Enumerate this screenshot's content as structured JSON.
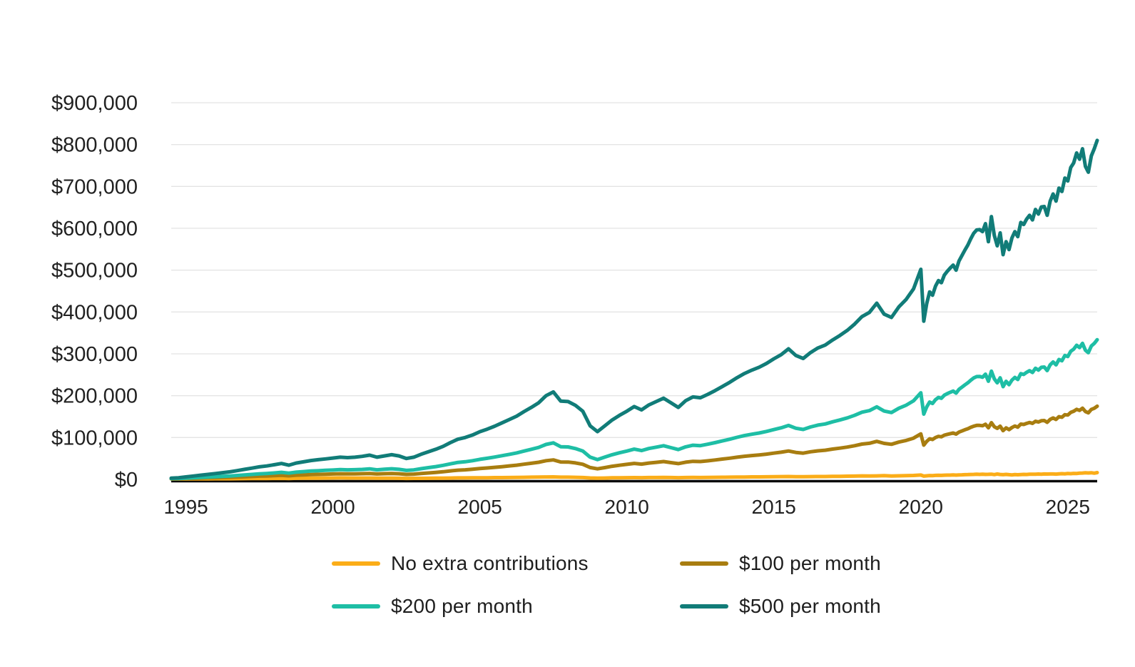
{
  "page": {
    "background": "#ffffff",
    "text_color": "#212121"
  },
  "chart_data": {
    "type": "line",
    "title": "",
    "grid": true,
    "grid_color": "#e4e4e4",
    "axis_color": "#0b0b0b",
    "label_color": "#212121",
    "legend_position": "bottom-two-columns",
    "units": "USD thousands",
    "x_axis": {
      "range": [
        1994.5,
        2026
      ],
      "tick_values": [
        1995,
        2000,
        2005,
        2010,
        2015,
        2020,
        2025
      ],
      "tick_labels": [
        "1995",
        "2000",
        "2005",
        "2010",
        "2015",
        "2020",
        "2025"
      ]
    },
    "y_axis": {
      "range": [
        0,
        900000
      ],
      "tick_values": [
        0,
        100000,
        200000,
        300000,
        400000,
        500000,
        600000,
        700000,
        800000,
        900000
      ],
      "tick_labels": [
        "$0",
        "$100,000",
        "$200,000",
        "$300,000",
        "$400,000",
        "$500,000",
        "$600,000",
        "$700,000",
        "$800,000",
        "$900,000"
      ]
    },
    "x_segments": [
      {
        "start": 1994.5,
        "step": 0.25,
        "count": 102
      },
      {
        "start": 2020,
        "step": 0.1,
        "count": 61
      }
    ],
    "series": [
      {
        "id": "no-extra-contributions",
        "name": "No extra contributions",
        "color": "#FBAD18",
        "values_thousands": [
          1,
          1,
          1.1,
          1.2,
          1.3,
          1.4,
          1.5,
          1.6,
          1.6,
          1.7,
          1.8,
          2,
          2.2,
          2.3,
          2.4,
          2.6,
          2.3,
          2.7,
          2.9,
          3.1,
          3.1,
          3.3,
          3.4,
          3.5,
          3.4,
          3.3,
          3.2,
          3.3,
          2.9,
          3,
          3,
          2.8,
          2.4,
          2.5,
          2.5,
          2.8,
          2.9,
          3.1,
          3.3,
          3.5,
          3.5,
          3.7,
          3.9,
          4,
          4.2,
          4.3,
          4.5,
          4.6,
          4.9,
          5.2,
          5.4,
          5.8,
          6,
          5.3,
          5.2,
          4.9,
          4.4,
          3.4,
          3,
          3.3,
          3.7,
          3.9,
          4.1,
          4.3,
          4.1,
          4.4,
          4.5,
          4.7,
          4.4,
          4.1,
          4.4,
          4.6,
          4.5,
          4.7,
          4.9,
          5.1,
          5.3,
          5.5,
          5.7,
          5.9,
          6,
          6.2,
          6.4,
          6.6,
          6.9,
          6.5,
          6.3,
          6.6,
          6.8,
          6.9,
          7.2,
          7.4,
          7.6,
          7.9,
          8.3,
          8,
          8.4,
          8.8,
          8.1,
          8.5,
          8.9,
          9.4,
          10.4,
          7.8,
          8.6,
          9.2,
          9,
          9.5,
          9.7,
          9.6,
          10,
          10.2,
          10.3,
          10.5,
          10.2,
          10.7,
          10.9,
          11.2,
          11.4,
          11.7,
          12,
          12.2,
          12,
          12.2,
          11.9,
          12.1,
          12.4,
          11.5,
          12.7,
          11.8,
          11.3,
          11.9,
          11.3,
          10.8,
          11.4,
          11,
          11.6,
          11.9,
          11.7,
          12.3,
          12.2,
          12.5,
          12.7,
          12.4,
          12.9,
          12.7,
          13,
          13,
          12.6,
          13.3,
          13.6,
          13.3,
          13.9,
          13.7,
          14.4,
          14.2,
          14.9,
          15.1,
          15.6,
          15.3,
          15.8,
          14.9,
          16.2
        ]
      },
      {
        "id": "100-per-month",
        "name": "$100 per month",
        "color": "#A87D10",
        "values_thousands": [
          1.4,
          1.6,
          2.1,
          2.6,
          3,
          3.5,
          4,
          4.5,
          4.9,
          5.6,
          6.2,
          7,
          7.8,
          8.2,
          8.9,
          9.7,
          8.6,
          10,
          10.7,
          11.5,
          11.9,
          12.4,
          12.9,
          13.4,
          13.1,
          13.2,
          13.6,
          14.2,
          12.9,
          13.6,
          14.2,
          13.4,
          11.9,
          12.6,
          14,
          15.4,
          16.7,
          18.3,
          20.2,
          22,
          22.8,
          24.2,
          25.9,
          27.2,
          28.8,
          30.4,
          32.2,
          33.9,
          36.3,
          38.6,
          40.9,
          44.6,
          46.6,
          41.6,
          41.4,
          39.3,
          36.1,
          28.3,
          25.2,
          28.2,
          31.4,
          33.7,
          35.9,
          38.2,
          36.5,
          39.1,
          40.8,
          42.6,
          40.1,
          37.7,
          41.1,
          43.1,
          42.6,
          44.4,
          46.3,
          48.5,
          50.6,
          53,
          55.2,
          56.9,
          58.4,
          60.4,
          62.7,
          64.9,
          67.9,
          64.4,
          62.8,
          65.9,
          68.2,
          69.7,
          72.4,
          74.7,
          77.3,
          80.5,
          84.4,
          86.2,
          90.9,
          86,
          83.9,
          89.2,
          93.1,
          98.5,
          108.7,
          81.8,
          90.9,
          97,
          95.2,
          100,
          102.8,
          101.7,
          105.6,
          107.6,
          109.2,
          110.8,
          108.2,
          113,
          115.7,
          118.6,
          121.1,
          124.4,
          127.2,
          129,
          129,
          128.2,
          131.7,
          123.3,
          135.5,
          125.8,
          121.8,
          127.2,
          116.4,
          123.1,
          118.8,
          124,
          127.5,
          124.8,
          132.1,
          131.3,
          133.8,
          136,
          133.8,
          139,
          137,
          140.1,
          140.7,
          136.4,
          143.4,
          146.8,
          143.1,
          149.8,
          148.5,
          154.6,
          153.7,
          160,
          162.7,
          167.4,
          164.9,
          170.1,
          162.1,
          159,
          167.2,
          169.9,
          174.9
        ]
      },
      {
        "id": "200-per-month",
        "name": "$200 per month",
        "color": "#1EBEA5",
        "values_thousands": [
          1.8,
          2.2,
          3.1,
          3.9,
          4.8,
          5.6,
          6.5,
          7.4,
          8.2,
          9.4,
          10.7,
          12,
          13.3,
          14.2,
          15.4,
          16.8,
          15,
          17.2,
          18.5,
          19.9,
          20.7,
          21.6,
          22.4,
          23.3,
          22.8,
          23.2,
          23.9,
          25.2,
          22.9,
          24.2,
          25.4,
          24.1,
          21.4,
          22.7,
          25.5,
          28.1,
          30.5,
          33.5,
          37.2,
          40.5,
          42.1,
          44.6,
          47.9,
          50.4,
          53.3,
          56.6,
          59.9,
          63.2,
          67.7,
          71.9,
          76.4,
          83.5,
          87.2,
          78,
          77.5,
          73.7,
          67.8,
          53.2,
          47.4,
          53.2,
          59,
          63.5,
          67.7,
          72.2,
          68.9,
          73.8,
          77.1,
          80.4,
          75.8,
          71.3,
          77.8,
          81.6,
          80.7,
          84,
          87.7,
          91.9,
          96,
          100.5,
          104.6,
          107.9,
          110.8,
          114.5,
          119,
          123.2,
          128.9,
          122.3,
          119.4,
          125.2,
          129.7,
          132.5,
          137.5,
          142,
          147,
          153.1,
          160.6,
          164.4,
          173.4,
          163.3,
          159.7,
          169.9,
          177.3,
          187.6,
          207,
          155.9,
          173.2,
          184.7,
          181.4,
          190.5,
          195.8,
          193.8,
          201.2,
          204.9,
          208.2,
          211.1,
          206.1,
          215.2,
          220.5,
          225.9,
          230.8,
          237,
          242.4,
          245.7,
          246,
          244.1,
          251.5,
          234.5,
          258.6,
          240.1,
          230.8,
          242.7,
          221.6,
          234.3,
          226.4,
          237.3,
          243.6,
          238.6,
          252.6,
          250.7,
          255.8,
          259.8,
          255.3,
          265.5,
          261.2,
          267.8,
          268.5,
          260,
          273.8,
          280.6,
          273.6,
          286.4,
          283.4,
          296,
          293.5,
          306.2,
          311,
          320.5,
          314.9,
          325.1,
          308.6,
          302.8,
          318.7,
          324.9,
          333.7
        ]
      },
      {
        "id": "500-per-month",
        "name": "$500 per month",
        "color": "#117C78",
        "values_thousands": [
          3,
          4,
          6,
          8,
          10,
          12,
          14,
          16,
          18,
          21,
          24,
          27,
          30,
          32,
          35,
          38,
          34,
          39,
          42,
          45,
          47,
          49,
          51,
          53,
          52,
          53,
          55,
          58,
          53,
          56,
          59,
          56,
          50,
          53,
          60,
          66,
          72,
          79,
          88,
          96,
          100,
          106,
          114,
          120,
          127,
          135,
          143,
          151,
          162,
          172,
          183,
          200,
          209,
          187,
          186,
          177,
          163,
          128,
          114,
          128,
          142,
          153,
          163,
          174,
          166,
          178,
          186,
          194,
          183,
          172,
          188,
          197,
          195,
          203,
          212,
          222,
          232,
          243,
          253,
          261,
          268,
          277,
          288,
          298,
          312,
          296,
          289,
          303,
          314,
          321,
          333,
          344,
          356,
          371,
          389,
          399,
          421,
          395,
          387,
          412,
          430,
          455,
          502,
          378,
          420,
          448,
          440,
          462,
          475,
          470,
          488,
          497,
          505,
          512,
          500,
          522,
          535,
          548,
          560,
          575,
          588,
          596,
          597,
          592,
          611,
          568,
          628,
          583,
          558,
          589,
          537,
          568,
          549,
          577,
          592,
          580,
          614,
          609,
          622,
          631,
          620,
          645,
          634,
          651,
          652,
          631,
          665,
          682,
          665,
          696,
          688,
          720,
          713,
          745,
          756,
          780,
          765,
          790,
          748,
          734,
          773,
          790,
          810
        ]
      }
    ]
  }
}
